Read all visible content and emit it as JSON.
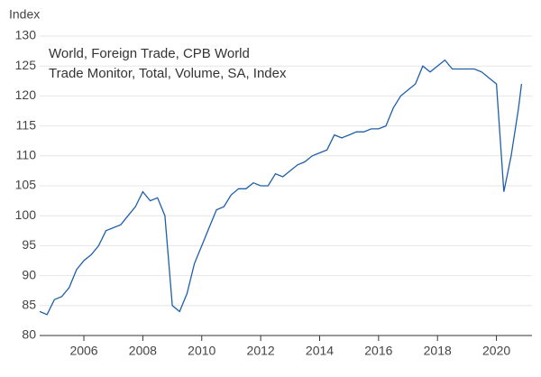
{
  "chart_data": {
    "type": "line",
    "y_label": "Index",
    "title_lines": [
      "World, Foreign Trade, CPB World",
      "Trade Monitor, Total, Volume, SA, Index"
    ],
    "x": [
      2004.5,
      2004.75,
      2005.0,
      2005.25,
      2005.5,
      2005.75,
      2006.0,
      2006.25,
      2006.5,
      2006.75,
      2007.0,
      2007.25,
      2007.5,
      2007.75,
      2008.0,
      2008.25,
      2008.5,
      2008.75,
      2009.0,
      2009.25,
      2009.5,
      2009.75,
      2010.0,
      2010.25,
      2010.5,
      2010.75,
      2011.0,
      2011.25,
      2011.5,
      2011.75,
      2012.0,
      2012.25,
      2012.5,
      2012.75,
      2013.0,
      2013.25,
      2013.5,
      2013.75,
      2014.0,
      2014.25,
      2014.5,
      2014.75,
      2015.0,
      2015.25,
      2015.5,
      2015.75,
      2016.0,
      2016.25,
      2016.5,
      2016.75,
      2017.0,
      2017.25,
      2017.5,
      2017.75,
      2018.0,
      2018.25,
      2018.5,
      2018.75,
      2019.0,
      2019.25,
      2019.5,
      2019.75,
      2020.0,
      2020.25,
      2020.5,
      2020.75,
      2020.85
    ],
    "series": [
      {
        "color": "#1f5fa8",
        "values": [
          84,
          83.5,
          86,
          86.5,
          88,
          91,
          92.5,
          93.5,
          95,
          97.5,
          98,
          98.5,
          100,
          101.5,
          104,
          102.5,
          103,
          100,
          85,
          84,
          87,
          92,
          95,
          98,
          101,
          101.5,
          103.5,
          104.5,
          104.5,
          105.5,
          105,
          105,
          107,
          106.5,
          107.5,
          108.5,
          109,
          110,
          110.5,
          111,
          113.5,
          113,
          113.5,
          114,
          114,
          114.5,
          114.5,
          115,
          118,
          120,
          121,
          122,
          125,
          124,
          125,
          126,
          124.5,
          124.5,
          124.5,
          124.5,
          124,
          123,
          122,
          104,
          110,
          118,
          122
        ]
      }
    ],
    "xlim": [
      2004.5,
      2020.9
    ],
    "xticks": [
      2006,
      2008,
      2010,
      2012,
      2014,
      2016,
      2018,
      2020
    ],
    "ylim": [
      80,
      130
    ],
    "yticks": [
      80,
      85,
      90,
      95,
      100,
      105,
      110,
      115,
      120,
      125,
      130
    ],
    "grid": true
  }
}
